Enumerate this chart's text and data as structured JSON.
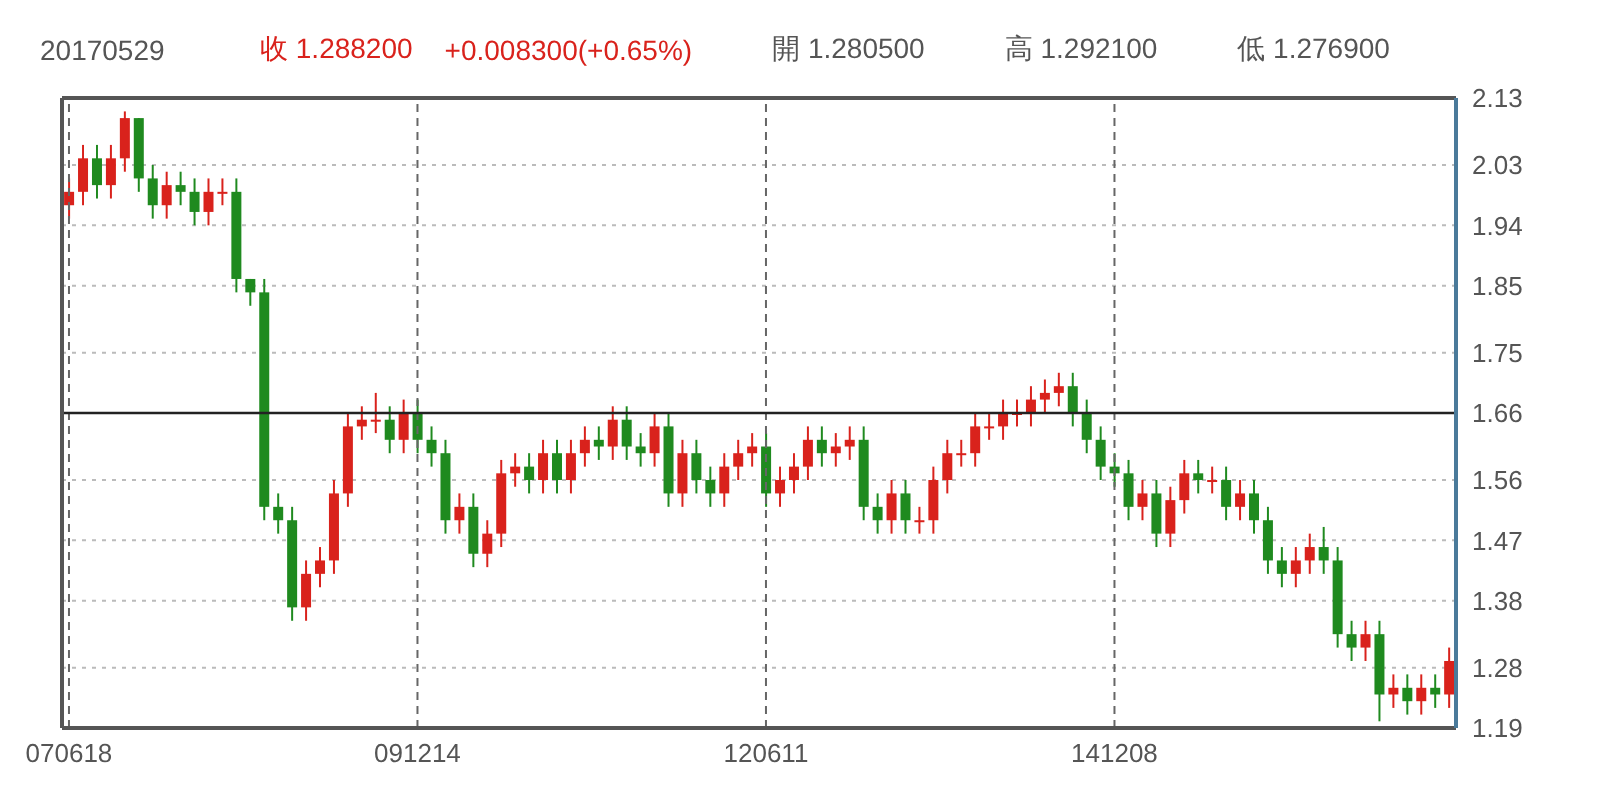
{
  "chart_data": {
    "type": "candlestick",
    "title": "20170529",
    "annotations": [
      "收 1.288200",
      "+0.008300(+0.65%)",
      "開 1.280500",
      "高 1.292100",
      "低 1.276900"
    ],
    "categories": [
      "070618",
      null,
      null,
      null,
      null,
      null,
      null,
      null,
      null,
      null,
      null,
      null,
      null,
      null,
      null,
      null,
      null,
      null,
      null,
      null,
      null,
      null,
      null,
      null,
      null,
      "091214",
      null,
      null,
      null,
      null,
      null,
      null,
      null,
      null,
      null,
      null,
      null,
      null,
      null,
      null,
      null,
      null,
      null,
      null,
      null,
      null,
      null,
      null,
      null,
      null,
      "120611",
      null,
      null,
      null,
      null,
      null,
      null,
      null,
      null,
      null,
      null,
      null,
      null,
      null,
      null,
      null,
      null,
      null,
      null,
      null,
      null,
      null,
      null,
      null,
      null,
      "141208",
      null,
      null,
      null,
      null,
      null,
      null,
      null,
      null,
      null,
      null,
      null,
      null,
      null,
      null,
      null,
      null,
      null,
      null,
      null,
      null,
      null,
      null,
      null,
      null
    ],
    "ohlc": [
      [
        1.97,
        2.01,
        1.95,
        1.99
      ],
      [
        1.99,
        2.06,
        1.97,
        2.04
      ],
      [
        2.04,
        2.06,
        1.98,
        2.0
      ],
      [
        2.0,
        2.06,
        1.98,
        2.04
      ],
      [
        2.04,
        2.11,
        2.02,
        2.1
      ],
      [
        2.1,
        2.1,
        1.99,
        2.01
      ],
      [
        2.01,
        2.03,
        1.95,
        1.97
      ],
      [
        1.97,
        2.02,
        1.95,
        2.0
      ],
      [
        2.0,
        2.02,
        1.97,
        1.99
      ],
      [
        1.99,
        2.01,
        1.94,
        1.96
      ],
      [
        1.96,
        2.01,
        1.94,
        1.99
      ],
      [
        1.99,
        2.01,
        1.97,
        1.99
      ],
      [
        1.99,
        2.01,
        1.84,
        1.86
      ],
      [
        1.86,
        1.86,
        1.82,
        1.84
      ],
      [
        1.84,
        1.86,
        1.5,
        1.52
      ],
      [
        1.52,
        1.54,
        1.48,
        1.5
      ],
      [
        1.5,
        1.52,
        1.35,
        1.37
      ],
      [
        1.37,
        1.44,
        1.35,
        1.42
      ],
      [
        1.42,
        1.46,
        1.4,
        1.44
      ],
      [
        1.44,
        1.56,
        1.42,
        1.54
      ],
      [
        1.54,
        1.66,
        1.52,
        1.64
      ],
      [
        1.64,
        1.67,
        1.62,
        1.65
      ],
      [
        1.65,
        1.69,
        1.63,
        1.65
      ],
      [
        1.65,
        1.67,
        1.6,
        1.62
      ],
      [
        1.62,
        1.68,
        1.6,
        1.66
      ],
      [
        1.66,
        1.68,
        1.6,
        1.62
      ],
      [
        1.62,
        1.64,
        1.58,
        1.6
      ],
      [
        1.6,
        1.62,
        1.48,
        1.5
      ],
      [
        1.5,
        1.54,
        1.48,
        1.52
      ],
      [
        1.52,
        1.54,
        1.43,
        1.45
      ],
      [
        1.45,
        1.5,
        1.43,
        1.48
      ],
      [
        1.48,
        1.59,
        1.46,
        1.57
      ],
      [
        1.57,
        1.6,
        1.55,
        1.58
      ],
      [
        1.58,
        1.6,
        1.54,
        1.56
      ],
      [
        1.56,
        1.62,
        1.54,
        1.6
      ],
      [
        1.6,
        1.62,
        1.54,
        1.56
      ],
      [
        1.56,
        1.62,
        1.54,
        1.6
      ],
      [
        1.6,
        1.64,
        1.58,
        1.62
      ],
      [
        1.62,
        1.64,
        1.59,
        1.61
      ],
      [
        1.61,
        1.67,
        1.59,
        1.65
      ],
      [
        1.65,
        1.67,
        1.59,
        1.61
      ],
      [
        1.61,
        1.63,
        1.58,
        1.6
      ],
      [
        1.6,
        1.66,
        1.58,
        1.64
      ],
      [
        1.64,
        1.66,
        1.52,
        1.54
      ],
      [
        1.54,
        1.62,
        1.52,
        1.6
      ],
      [
        1.6,
        1.62,
        1.54,
        1.56
      ],
      [
        1.56,
        1.58,
        1.52,
        1.54
      ],
      [
        1.54,
        1.6,
        1.52,
        1.58
      ],
      [
        1.58,
        1.62,
        1.56,
        1.6
      ],
      [
        1.6,
        1.63,
        1.58,
        1.61
      ],
      [
        1.61,
        1.63,
        1.52,
        1.54
      ],
      [
        1.54,
        1.58,
        1.52,
        1.56
      ],
      [
        1.56,
        1.6,
        1.54,
        1.58
      ],
      [
        1.58,
        1.64,
        1.56,
        1.62
      ],
      [
        1.62,
        1.64,
        1.58,
        1.6
      ],
      [
        1.6,
        1.63,
        1.58,
        1.61
      ],
      [
        1.61,
        1.64,
        1.59,
        1.62
      ],
      [
        1.62,
        1.64,
        1.5,
        1.52
      ],
      [
        1.52,
        1.54,
        1.48,
        1.5
      ],
      [
        1.5,
        1.56,
        1.48,
        1.54
      ],
      [
        1.54,
        1.56,
        1.48,
        1.5
      ],
      [
        1.5,
        1.52,
        1.48,
        1.5
      ],
      [
        1.5,
        1.58,
        1.48,
        1.56
      ],
      [
        1.56,
        1.62,
        1.54,
        1.6
      ],
      [
        1.6,
        1.62,
        1.58,
        1.6
      ],
      [
        1.6,
        1.66,
        1.58,
        1.64
      ],
      [
        1.64,
        1.66,
        1.62,
        1.64
      ],
      [
        1.64,
        1.68,
        1.62,
        1.66
      ],
      [
        1.66,
        1.68,
        1.64,
        1.66
      ],
      [
        1.66,
        1.7,
        1.64,
        1.68
      ],
      [
        1.68,
        1.71,
        1.66,
        1.69
      ],
      [
        1.69,
        1.72,
        1.67,
        1.7
      ],
      [
        1.7,
        1.72,
        1.64,
        1.66
      ],
      [
        1.66,
        1.68,
        1.6,
        1.62
      ],
      [
        1.62,
        1.64,
        1.56,
        1.58
      ],
      [
        1.58,
        1.6,
        1.55,
        1.57
      ],
      [
        1.57,
        1.59,
        1.5,
        1.52
      ],
      [
        1.52,
        1.56,
        1.5,
        1.54
      ],
      [
        1.54,
        1.56,
        1.46,
        1.48
      ],
      [
        1.48,
        1.55,
        1.46,
        1.53
      ],
      [
        1.53,
        1.59,
        1.51,
        1.57
      ],
      [
        1.57,
        1.59,
        1.54,
        1.56
      ],
      [
        1.56,
        1.58,
        1.54,
        1.56
      ],
      [
        1.56,
        1.58,
        1.5,
        1.52
      ],
      [
        1.52,
        1.56,
        1.5,
        1.54
      ],
      [
        1.54,
        1.56,
        1.48,
        1.5
      ],
      [
        1.5,
        1.52,
        1.42,
        1.44
      ],
      [
        1.44,
        1.46,
        1.4,
        1.42
      ],
      [
        1.42,
        1.46,
        1.4,
        1.44
      ],
      [
        1.44,
        1.48,
        1.42,
        1.46
      ],
      [
        1.46,
        1.49,
        1.42,
        1.44
      ],
      [
        1.44,
        1.46,
        1.31,
        1.33
      ],
      [
        1.33,
        1.35,
        1.29,
        1.31
      ],
      [
        1.31,
        1.35,
        1.29,
        1.33
      ],
      [
        1.33,
        1.35,
        1.2,
        1.24
      ],
      [
        1.24,
        1.27,
        1.22,
        1.25
      ],
      [
        1.25,
        1.27,
        1.21,
        1.23
      ],
      [
        1.23,
        1.27,
        1.21,
        1.25
      ],
      [
        1.25,
        1.27,
        1.22,
        1.24
      ],
      [
        1.24,
        1.31,
        1.22,
        1.29
      ]
    ],
    "ylim": [
      1.19,
      2.13
    ],
    "yticks": [
      1.19,
      1.28,
      1.38,
      1.47,
      1.56,
      1.66,
      1.75,
      1.85,
      1.94,
      2.03,
      2.13
    ],
    "ref_lines": [
      {
        "axis": "y",
        "value": 1.66,
        "color": "#222222"
      }
    ],
    "grid": true
  }
}
